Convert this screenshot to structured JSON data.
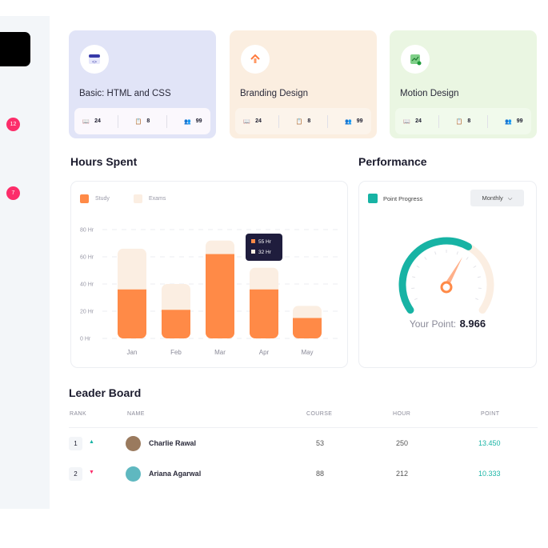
{
  "sidebar": {
    "badges": [
      "12",
      "7"
    ]
  },
  "courses": [
    {
      "title": "Basic: HTML and CSS",
      "icon": "code-window-icon",
      "bg": "#e1e4f7",
      "stats_bg": "#fbf8fd",
      "lessons": "24",
      "assignments": "8",
      "students": "99"
    },
    {
      "title": "Branding Design",
      "icon": "branding-arrow-icon",
      "bg": "#fbeee0",
      "stats_bg": "#fcf4eb",
      "lessons": "24",
      "assignments": "8",
      "students": "99"
    },
    {
      "title": "Motion Design",
      "icon": "chart-trend-icon",
      "bg": "#eaf6e2",
      "stats_bg": "#f1faec",
      "lessons": "24",
      "assignments": "8",
      "students": "99"
    }
  ],
  "hours": {
    "title": "Hours Spent",
    "tooltip": {
      "study": "55 Hr",
      "exams": "32 Hr"
    }
  },
  "chart_data": {
    "type": "bar",
    "stacked": true,
    "categories": [
      "Jan",
      "Feb",
      "Mar",
      "Apr",
      "May"
    ],
    "series": [
      {
        "name": "Study",
        "color": "#ff8a47",
        "values": [
          36,
          21,
          62,
          36,
          15
        ]
      },
      {
        "name": "Exams",
        "color": "#fbeee2",
        "values": [
          30,
          19,
          10,
          16,
          9
        ]
      }
    ],
    "yticks": [
      "0 Hr",
      "20 Hr",
      "40 Hr",
      "60 Hr",
      "80 Hr"
    ],
    "ylim": [
      0,
      80
    ],
    "grid": true,
    "legend": "top-left"
  },
  "performance": {
    "title": "Performance",
    "legend": "Point Progress",
    "period": "Monthly",
    "label": "Your Point:",
    "value": "8.966",
    "progress": 0.62,
    "accent": "#17b3a4"
  },
  "leaderboard": {
    "title": "Leader Board",
    "headers": [
      "RANK",
      "NAME",
      "COURSE",
      "HOUR",
      "POINT"
    ],
    "rows": [
      {
        "rank": "1",
        "trend": "up",
        "name": "Charlie Rawal",
        "course": "53",
        "hour": "250",
        "point": "13.450"
      },
      {
        "rank": "2",
        "trend": "down",
        "name": "Ariana Agarwal",
        "course": "88",
        "hour": "212",
        "point": "10.333"
      }
    ]
  }
}
